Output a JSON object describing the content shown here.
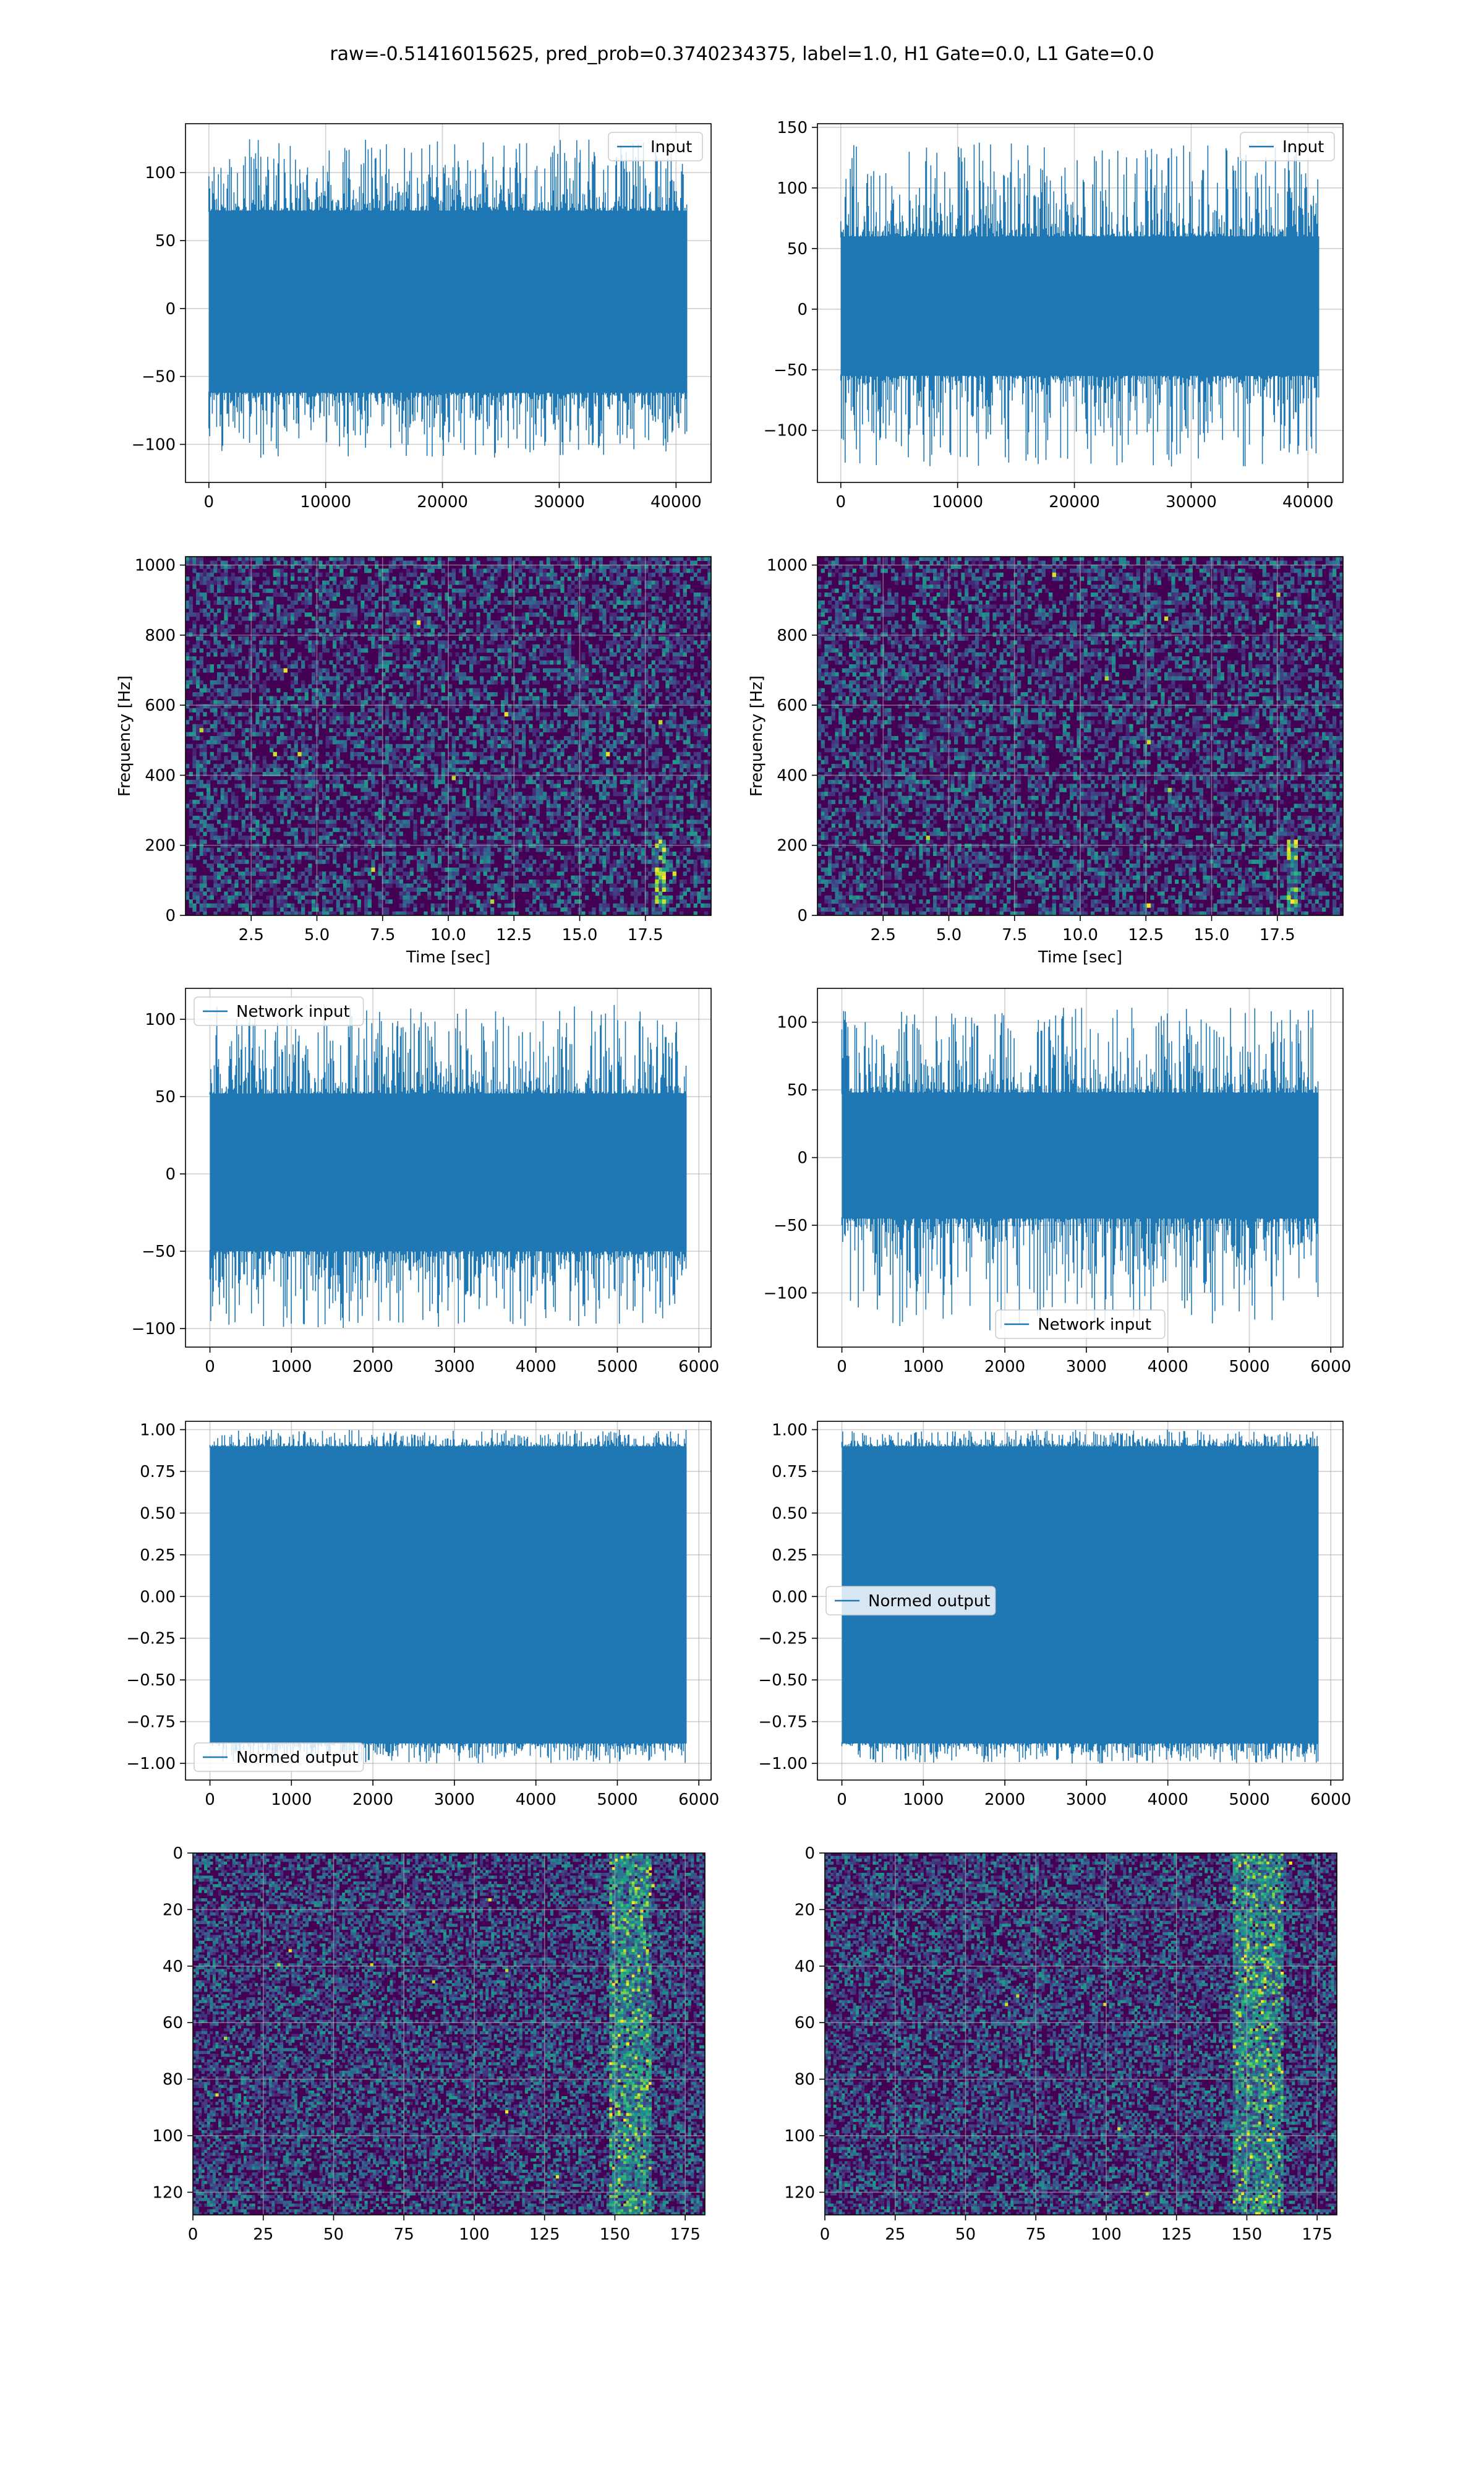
{
  "figure": {
    "title": "raw=-0.51416015625, pred_prob=0.3740234375, label=1.0, H1 Gate=0.0, L1 Gate=0.0"
  },
  "colors": {
    "series": "#1f77b4",
    "grid": "#b0b0b0",
    "heatmap_low": "#440154",
    "heatmap_mid": "#21918c",
    "heatmap_high": "#fde725"
  },
  "chart_data": [
    {
      "id": "h1-input",
      "type": "line",
      "title": "",
      "xlabel": "",
      "ylabel": "",
      "xlim": [
        -2000,
        43000
      ],
      "ylim": [
        -128,
        136
      ],
      "xticks": [
        0,
        10000,
        20000,
        30000,
        40000
      ],
      "yticks": [
        -100,
        -50,
        0,
        50,
        100
      ],
      "grid": true,
      "legend": "upper right",
      "series": [
        {
          "name": "Input",
          "x_range": [
            0,
            40959
          ],
          "envelope": [
            -110,
            125
          ],
          "band": [
            -62,
            72
          ]
        }
      ]
    },
    {
      "id": "l1-input",
      "type": "line",
      "title": "",
      "xlabel": "",
      "ylabel": "",
      "xlim": [
        -2000,
        43000
      ],
      "ylim": [
        -143,
        153
      ],
      "xticks": [
        0,
        10000,
        20000,
        30000,
        40000
      ],
      "yticks": [
        -100,
        -50,
        0,
        50,
        100,
        150
      ],
      "grid": true,
      "legend": "upper right",
      "series": [
        {
          "name": "Input",
          "x_range": [
            0,
            40959
          ],
          "envelope": [
            -130,
            138
          ],
          "band": [
            -55,
            60
          ]
        }
      ]
    },
    {
      "id": "h1-spectrogram",
      "type": "heatmap",
      "title": "",
      "xlabel": "Time [sec]",
      "ylabel": "Frequency [Hz]",
      "xlim": [
        0,
        20
      ],
      "ylim": [
        0,
        1024
      ],
      "xticks": [
        2.5,
        5.0,
        7.5,
        10.0,
        12.5,
        15.0,
        17.5
      ],
      "xtick_labels": [
        "2.5",
        "5.0",
        "7.5",
        "10.0",
        "12.5",
        "15.0",
        "17.5"
      ],
      "yticks": [
        0,
        200,
        400,
        600,
        800,
        1000
      ],
      "grid": true,
      "highlight": {
        "time": 18.0,
        "freq_range": [
          20,
          220
        ]
      }
    },
    {
      "id": "l1-spectrogram",
      "type": "heatmap",
      "title": "",
      "xlabel": "Time [sec]",
      "ylabel": "Frequency [Hz]",
      "xlim": [
        0,
        20
      ],
      "ylim": [
        0,
        1024
      ],
      "xticks": [
        2.5,
        5.0,
        7.5,
        10.0,
        12.5,
        15.0,
        17.5
      ],
      "xtick_labels": [
        "2.5",
        "5.0",
        "7.5",
        "10.0",
        "12.5",
        "15.0",
        "17.5"
      ],
      "yticks": [
        0,
        200,
        400,
        600,
        800,
        1000
      ],
      "grid": true,
      "highlight": {
        "time": 18.0,
        "freq_range": [
          20,
          220
        ]
      }
    },
    {
      "id": "h1-network-input",
      "type": "line",
      "title": "",
      "xlabel": "",
      "ylabel": "",
      "xlim": [
        -300,
        6150
      ],
      "ylim": [
        -112,
        120
      ],
      "xticks": [
        0,
        1000,
        2000,
        3000,
        4000,
        5000,
        6000
      ],
      "yticks": [
        -100,
        -50,
        0,
        50,
        100
      ],
      "grid": true,
      "legend": "upper left",
      "series": [
        {
          "name": "Network input",
          "x_range": [
            0,
            5850
          ],
          "envelope": [
            -100,
            110
          ],
          "band": [
            -50,
            52
          ]
        }
      ]
    },
    {
      "id": "l1-network-input",
      "type": "line",
      "title": "",
      "xlabel": "",
      "ylabel": "",
      "xlim": [
        -300,
        6150
      ],
      "ylim": [
        -140,
        125
      ],
      "xticks": [
        0,
        1000,
        2000,
        3000,
        4000,
        5000,
        6000
      ],
      "yticks": [
        -100,
        -50,
        0,
        50,
        100
      ],
      "grid": true,
      "legend": "lower center",
      "series": [
        {
          "name": "Network input",
          "x_range": [
            0,
            5850
          ],
          "envelope": [
            -128,
            112
          ],
          "band": [
            -45,
            48
          ]
        }
      ]
    },
    {
      "id": "h1-normed-output",
      "type": "line",
      "title": "",
      "xlabel": "",
      "ylabel": "",
      "xlim": [
        -300,
        6150
      ],
      "ylim": [
        -1.1,
        1.05
      ],
      "xticks": [
        0,
        1000,
        2000,
        3000,
        4000,
        5000,
        6000
      ],
      "yticks": [
        -1.0,
        -0.75,
        -0.5,
        -0.25,
        0.0,
        0.25,
        0.5,
        0.75,
        1.0
      ],
      "ytick_labels": [
        "−1.00",
        "−0.75",
        "−0.50",
        "−0.25",
        "0.00",
        "0.25",
        "0.50",
        "0.75",
        "1.00"
      ],
      "grid": true,
      "legend": "lower left",
      "series": [
        {
          "name": "Normed output",
          "x_range": [
            0,
            5850
          ],
          "envelope": [
            -1.0,
            1.0
          ],
          "band": [
            -0.88,
            0.9
          ]
        }
      ]
    },
    {
      "id": "l1-normed-output",
      "type": "line",
      "title": "",
      "xlabel": "",
      "ylabel": "",
      "xlim": [
        -300,
        6150
      ],
      "ylim": [
        -1.1,
        1.05
      ],
      "xticks": [
        0,
        1000,
        2000,
        3000,
        4000,
        5000,
        6000
      ],
      "yticks": [
        -1.0,
        -0.75,
        -0.5,
        -0.25,
        0.0,
        0.25,
        0.5,
        0.75,
        1.0
      ],
      "ytick_labels": [
        "−1.00",
        "−0.75",
        "−0.50",
        "−0.25",
        "0.00",
        "0.25",
        "0.50",
        "0.75",
        "1.00"
      ],
      "grid": true,
      "legend": "center left",
      "series": [
        {
          "name": "Normed output",
          "x_range": [
            0,
            5850
          ],
          "envelope": [
            -1.0,
            1.0
          ],
          "band": [
            -0.88,
            0.9
          ]
        }
      ]
    },
    {
      "id": "h1-whitened-image",
      "type": "heatmap",
      "title": "",
      "xlabel": "",
      "ylabel": "",
      "xlim": [
        0,
        182
      ],
      "ylim": [
        128,
        0
      ],
      "xticks": [
        0,
        25,
        50,
        75,
        100,
        125,
        150,
        175
      ],
      "yticks": [
        0,
        20,
        40,
        60,
        80,
        100,
        120
      ],
      "grid": true,
      "highlight": {
        "col_range": [
          148,
          162
        ]
      }
    },
    {
      "id": "l1-whitened-image",
      "type": "heatmap",
      "title": "",
      "xlabel": "",
      "ylabel": "",
      "xlim": [
        0,
        182
      ],
      "ylim": [
        128,
        0
      ],
      "xticks": [
        0,
        25,
        50,
        75,
        100,
        125,
        150,
        175
      ],
      "yticks": [
        0,
        20,
        40,
        60,
        80,
        100,
        120
      ],
      "grid": true,
      "highlight": {
        "col_range": [
          145,
          162
        ]
      }
    }
  ]
}
